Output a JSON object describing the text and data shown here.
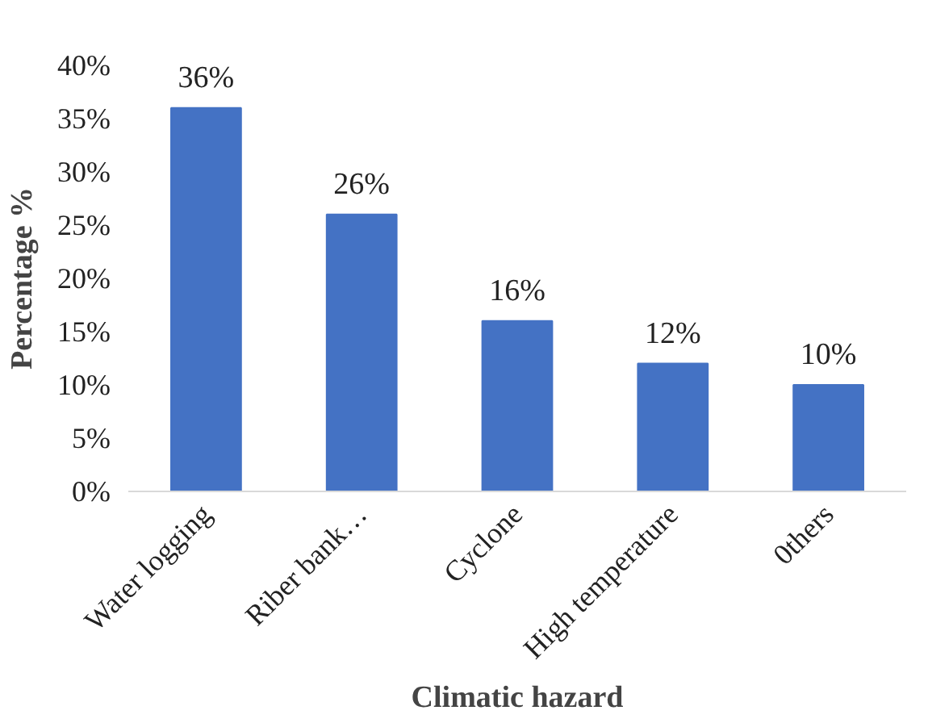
{
  "chart_data": {
    "type": "bar",
    "xlabel": "Climatic hazard",
    "ylabel": "Percentage %",
    "categories": [
      "Water logging",
      "Riber bank…",
      "Cyclone",
      "High temperature",
      "0thers"
    ],
    "values": [
      36,
      26,
      16,
      12,
      10
    ],
    "value_labels": [
      "36%",
      "26%",
      "16%",
      "12%",
      "10%"
    ],
    "color": "#4472c4",
    "ylim": [
      0,
      40
    ],
    "yticks": [
      {
        "value": 0,
        "label": "0%"
      },
      {
        "value": 5,
        "label": "5%"
      },
      {
        "value": 10,
        "label": "10%"
      },
      {
        "value": 15,
        "label": "15%"
      },
      {
        "value": 20,
        "label": "20%"
      },
      {
        "value": 25,
        "label": "25%"
      },
      {
        "value": 30,
        "label": "30%"
      },
      {
        "value": 35,
        "label": "35%"
      },
      {
        "value": 40,
        "label": "40%"
      }
    ],
    "grid": false
  }
}
